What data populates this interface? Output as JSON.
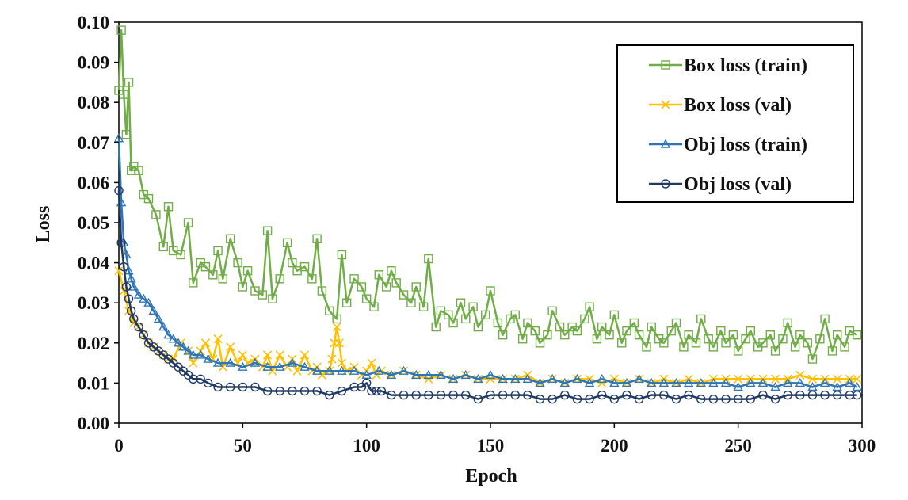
{
  "chart_data": {
    "type": "line",
    "xlabel": "Epoch",
    "ylabel": "Loss",
    "xlim": [
      0,
      300
    ],
    "ylim": [
      0,
      0.1
    ],
    "xticks": [
      "0",
      "50",
      "100",
      "150",
      "200",
      "250",
      "300"
    ],
    "yticks": [
      "0.00",
      "0.01",
      "0.02",
      "0.03",
      "0.04",
      "0.05",
      "0.06",
      "0.07",
      "0.08",
      "0.09",
      "0.10"
    ],
    "grid": false,
    "legend_position": "top-right",
    "series": [
      {
        "name": "Box loss (train)",
        "color": "#70ad47",
        "marker": "square",
        "x": [
          0,
          1,
          2,
          3,
          4,
          5,
          6,
          8,
          10,
          12,
          15,
          18,
          20,
          22,
          25,
          28,
          30,
          33,
          35,
          38,
          40,
          42,
          45,
          48,
          50,
          52,
          55,
          58,
          60,
          62,
          65,
          68,
          70,
          72,
          75,
          78,
          80,
          82,
          85,
          88,
          90,
          92,
          95,
          98,
          100,
          103,
          105,
          108,
          110,
          112,
          115,
          118,
          120,
          123,
          125,
          128,
          130,
          133,
          135,
          138,
          140,
          143,
          145,
          148,
          150,
          153,
          155,
          158,
          160,
          163,
          165,
          168,
          170,
          173,
          175,
          178,
          180,
          183,
          185,
          188,
          190,
          193,
          195,
          198,
          200,
          203,
          205,
          208,
          210,
          213,
          215,
          218,
          220,
          223,
          225,
          228,
          230,
          233,
          235,
          238,
          240,
          243,
          245,
          248,
          250,
          253,
          255,
          258,
          260,
          263,
          265,
          268,
          270,
          273,
          275,
          278,
          280,
          283,
          285,
          288,
          290,
          293,
          295,
          298
        ],
        "values": [
          0.083,
          0.098,
          0.082,
          0.072,
          0.085,
          0.063,
          0.064,
          0.063,
          0.057,
          0.056,
          0.052,
          0.044,
          0.054,
          0.043,
          0.042,
          0.05,
          0.035,
          0.04,
          0.039,
          0.037,
          0.043,
          0.036,
          0.046,
          0.04,
          0.034,
          0.038,
          0.033,
          0.032,
          0.048,
          0.031,
          0.036,
          0.045,
          0.04,
          0.038,
          0.039,
          0.036,
          0.046,
          0.033,
          0.028,
          0.026,
          0.042,
          0.03,
          0.036,
          0.034,
          0.031,
          0.029,
          0.037,
          0.034,
          0.038,
          0.035,
          0.032,
          0.03,
          0.034,
          0.029,
          0.041,
          0.024,
          0.028,
          0.027,
          0.025,
          0.03,
          0.026,
          0.029,
          0.024,
          0.027,
          0.033,
          0.025,
          0.022,
          0.026,
          0.027,
          0.021,
          0.025,
          0.023,
          0.02,
          0.022,
          0.028,
          0.024,
          0.022,
          0.024,
          0.023,
          0.026,
          0.029,
          0.021,
          0.024,
          0.022,
          0.027,
          0.02,
          0.023,
          0.025,
          0.022,
          0.019,
          0.024,
          0.021,
          0.02,
          0.023,
          0.025,
          0.019,
          0.022,
          0.02,
          0.026,
          0.021,
          0.019,
          0.023,
          0.02,
          0.022,
          0.018,
          0.021,
          0.023,
          0.019,
          0.02,
          0.022,
          0.018,
          0.021,
          0.025,
          0.019,
          0.022,
          0.02,
          0.016,
          0.021,
          0.026,
          0.018,
          0.022,
          0.019,
          0.023,
          0.022
        ]
      },
      {
        "name": "Box loss (val)",
        "color": "#ffc000",
        "marker": "x",
        "x": [
          0,
          2,
          4,
          6,
          8,
          10,
          12,
          14,
          16,
          18,
          20,
          22,
          25,
          28,
          30,
          33,
          35,
          38,
          40,
          42,
          45,
          48,
          50,
          52,
          55,
          58,
          60,
          62,
          65,
          68,
          70,
          72,
          75,
          78,
          80,
          82,
          85,
          86,
          87,
          88,
          89,
          90,
          92,
          95,
          98,
          100,
          102,
          104,
          106,
          110,
          115,
          120,
          125,
          130,
          135,
          140,
          145,
          150,
          155,
          160,
          165,
          170,
          175,
          180,
          185,
          190,
          195,
          200,
          205,
          210,
          215,
          220,
          225,
          230,
          235,
          240,
          245,
          250,
          255,
          260,
          265,
          270,
          275,
          280,
          285,
          290,
          295,
          298
        ],
        "values": [
          0.038,
          0.033,
          0.028,
          0.025,
          0.024,
          0.022,
          0.02,
          0.019,
          0.018,
          0.017,
          0.016,
          0.016,
          0.02,
          0.018,
          0.015,
          0.018,
          0.02,
          0.016,
          0.021,
          0.014,
          0.019,
          0.015,
          0.017,
          0.015,
          0.016,
          0.014,
          0.017,
          0.013,
          0.017,
          0.014,
          0.016,
          0.013,
          0.017,
          0.013,
          0.014,
          0.012,
          0.013,
          0.016,
          0.02,
          0.024,
          0.02,
          0.015,
          0.013,
          0.014,
          0.012,
          0.013,
          0.015,
          0.012,
          0.013,
          0.012,
          0.013,
          0.012,
          0.011,
          0.012,
          0.011,
          0.012,
          0.011,
          0.011,
          0.011,
          0.011,
          0.012,
          0.01,
          0.011,
          0.01,
          0.011,
          0.011,
          0.01,
          0.011,
          0.01,
          0.011,
          0.01,
          0.011,
          0.01,
          0.011,
          0.01,
          0.011,
          0.011,
          0.011,
          0.011,
          0.011,
          0.011,
          0.011,
          0.012,
          0.011,
          0.011,
          0.011,
          0.011,
          0.011
        ]
      },
      {
        "name": "Obj loss (train)",
        "color": "#2e75b6",
        "marker": "triangle",
        "x": [
          0,
          1,
          2,
          3,
          4,
          5,
          6,
          8,
          10,
          12,
          14,
          16,
          18,
          20,
          22,
          24,
          26,
          28,
          30,
          33,
          36,
          40,
          45,
          50,
          55,
          60,
          65,
          70,
          75,
          80,
          85,
          90,
          95,
          100,
          105,
          110,
          115,
          120,
          125,
          130,
          135,
          140,
          145,
          150,
          155,
          160,
          165,
          170,
          175,
          180,
          185,
          190,
          195,
          200,
          205,
          210,
          215,
          220,
          225,
          230,
          235,
          240,
          245,
          250,
          255,
          260,
          265,
          270,
          275,
          280,
          285,
          290,
          295,
          298
        ],
        "values": [
          0.071,
          0.055,
          0.045,
          0.042,
          0.038,
          0.036,
          0.034,
          0.032,
          0.031,
          0.03,
          0.028,
          0.026,
          0.024,
          0.022,
          0.021,
          0.02,
          0.019,
          0.018,
          0.017,
          0.017,
          0.016,
          0.015,
          0.015,
          0.014,
          0.015,
          0.014,
          0.014,
          0.015,
          0.014,
          0.013,
          0.013,
          0.013,
          0.013,
          0.012,
          0.013,
          0.012,
          0.013,
          0.012,
          0.012,
          0.012,
          0.011,
          0.012,
          0.011,
          0.012,
          0.011,
          0.011,
          0.011,
          0.01,
          0.011,
          0.01,
          0.011,
          0.01,
          0.011,
          0.01,
          0.01,
          0.011,
          0.01,
          0.01,
          0.01,
          0.01,
          0.01,
          0.01,
          0.01,
          0.009,
          0.01,
          0.01,
          0.009,
          0.01,
          0.01,
          0.009,
          0.01,
          0.009,
          0.01,
          0.009
        ]
      },
      {
        "name": "Obj loss (val)",
        "color": "#1f3864",
        "marker": "circle",
        "x": [
          0,
          1,
          2,
          3,
          4,
          5,
          6,
          8,
          10,
          12,
          14,
          16,
          18,
          20,
          22,
          24,
          26,
          28,
          30,
          33,
          36,
          40,
          45,
          50,
          55,
          60,
          65,
          70,
          75,
          80,
          85,
          90,
          95,
          98,
          100,
          102,
          104,
          106,
          110,
          115,
          120,
          125,
          130,
          135,
          140,
          145,
          150,
          155,
          160,
          165,
          170,
          175,
          180,
          185,
          190,
          195,
          200,
          205,
          210,
          215,
          220,
          225,
          230,
          235,
          240,
          245,
          250,
          255,
          260,
          265,
          270,
          275,
          280,
          285,
          290,
          295,
          298
        ],
        "values": [
          0.058,
          0.045,
          0.039,
          0.034,
          0.031,
          0.028,
          0.026,
          0.024,
          0.022,
          0.02,
          0.019,
          0.018,
          0.017,
          0.016,
          0.015,
          0.014,
          0.013,
          0.012,
          0.011,
          0.011,
          0.01,
          0.009,
          0.009,
          0.009,
          0.009,
          0.008,
          0.008,
          0.008,
          0.008,
          0.008,
          0.007,
          0.008,
          0.009,
          0.009,
          0.01,
          0.008,
          0.008,
          0.008,
          0.007,
          0.007,
          0.007,
          0.007,
          0.007,
          0.007,
          0.007,
          0.006,
          0.007,
          0.007,
          0.007,
          0.007,
          0.006,
          0.006,
          0.007,
          0.006,
          0.006,
          0.007,
          0.006,
          0.007,
          0.006,
          0.007,
          0.007,
          0.006,
          0.007,
          0.006,
          0.006,
          0.006,
          0.006,
          0.006,
          0.007,
          0.006,
          0.007,
          0.007,
          0.007,
          0.007,
          0.007,
          0.007,
          0.007
        ]
      }
    ]
  }
}
